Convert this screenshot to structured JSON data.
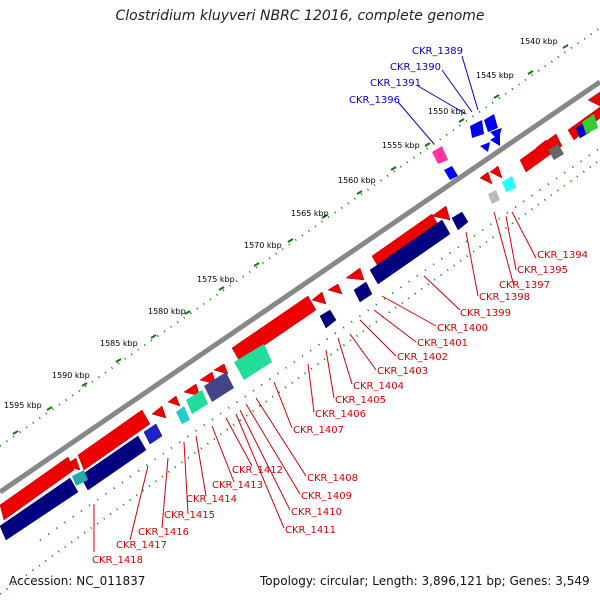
{
  "title": "Clostridium kluyveri NBRC 12016, complete genome",
  "footer": {
    "accession": "Accession: NC_011837",
    "summary": "Topology: circular; Length: 3,896,121 bp; Genes: 3,549"
  },
  "kbp_ticks": [
    "1540 kbp",
    "1545 kbp",
    "1550 kbp",
    "1555 kbp",
    "1560 kbp",
    "1565 kbp",
    "1570 kbp",
    "1575 kbp",
    "1580 kbp",
    "1585 kbp",
    "1590 kbp",
    "1595 kbp"
  ],
  "genes_outer": [
    "CKR_1389",
    "CKR_1390",
    "CKR_1391",
    "CKR_1396"
  ],
  "genes_inner": [
    "CKR_1394",
    "CKR_1395",
    "CKR_1397",
    "CKR_1398",
    "CKR_1399",
    "CKR_1400",
    "CKR_1401",
    "CKR_1402",
    "CKR_1403",
    "CKR_1404",
    "CKR_1405",
    "CKR_1406",
    "CKR_1407",
    "CKR_1408",
    "CKR_1409",
    "CKR_1410",
    "CKR_1411",
    "CKR_1412",
    "CKR_1413",
    "CKR_1414",
    "CKR_1415",
    "CKR_1416",
    "CKR_1417",
    "CKR_1418"
  ],
  "colors": {
    "forward_cds": "#ee0000",
    "reverse_cds": "#000080",
    "backbone": "#888888",
    "tick": "#117711",
    "label_red": "#d10000",
    "label_blue": "#0000cc"
  }
}
